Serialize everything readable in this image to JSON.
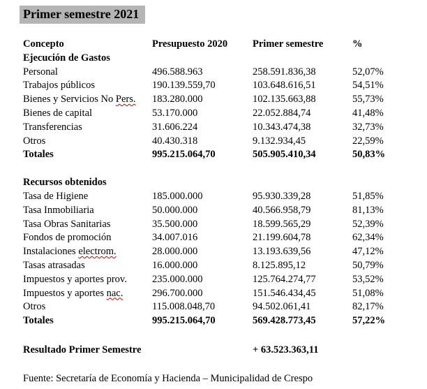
{
  "title": "Primer semestre 2021",
  "colors": {
    "background": "#ffffff",
    "text": "#000000",
    "title_highlight": "#b5b5b5",
    "spellcheck_underline": "#cc0000"
  },
  "table": {
    "columns": [
      "Concepto",
      "Presupuesto 2020",
      "Primer semestre",
      "%"
    ],
    "sections": [
      {
        "heading": "Ejecución de Gastos",
        "rows": [
          {
            "label": "Personal",
            "presupuesto_2020": "496.588.963",
            "primer_semestre": "258.591.836,38",
            "pct": "52,07%"
          },
          {
            "label": "Trabajos públicos",
            "presupuesto_2020": "190.139.559,70",
            "primer_semestre": "103.648.616,51",
            "pct": "54,51%"
          },
          {
            "label": "Bienes y Servicios No",
            "label_misspelled": "Pers.",
            "presupuesto_2020": "183.280.000",
            "primer_semestre": "102.135.663,88",
            "pct": "55,73%"
          },
          {
            "label": "Bienes de capital",
            "presupuesto_2020": "53.170.000",
            "primer_semestre": "22.052.884,74",
            "pct": "41,48%"
          },
          {
            "label": "Transferencias",
            "presupuesto_2020": "31.606.224",
            "primer_semestre": "10.343.474,38",
            "pct": "32,73%"
          },
          {
            "label": "Otros",
            "presupuesto_2020": "40.430.318",
            "primer_semestre": "9.132.934,45",
            "pct": "22,59%"
          }
        ],
        "totals": {
          "label": "Totales",
          "presupuesto_2020": "995.215.064,70",
          "primer_semestre": "505.905.410,34",
          "pct": "50,83%"
        }
      },
      {
        "heading": "Recursos obtenidos",
        "rows": [
          {
            "label": "Tasa de Higiene",
            "presupuesto_2020": "185.000.000",
            "primer_semestre": "95.930.339,28",
            "pct": "51,85%"
          },
          {
            "label": "Tasa Inmobiliaria",
            "presupuesto_2020": "50.000.000",
            "primer_semestre": "40.566.958,79",
            "pct": "81,13%"
          },
          {
            "label": "Tasa Obras Sanitarias",
            "presupuesto_2020": "35.500.000",
            "primer_semestre": "18.599.565,29",
            "pct": "52,39%"
          },
          {
            "label": "Fondos de promoción",
            "presupuesto_2020": "34.007.016",
            "primer_semestre": "21.199.604,78",
            "pct": "62,34%"
          },
          {
            "label": "Instalaciones",
            "label_misspelled": "electrom.",
            "presupuesto_2020": "28.000.000",
            "primer_semestre": "13.193.639,56",
            "pct": "47,12%"
          },
          {
            "label": "Tasas atrasadas",
            "presupuesto_2020": "16.000.000",
            "primer_semestre": "8.125.895,12",
            "pct": "50,79%"
          },
          {
            "label": "Impuestos y aportes prov.",
            "presupuesto_2020": "235.000.000",
            "primer_semestre": "125.764.274,77",
            "pct": "53,52%"
          },
          {
            "label": "Impuestos y aportes",
            "label_misspelled": "nac.",
            "presupuesto_2020": "296.700.000",
            "primer_semestre": "151.546.434,45",
            "pct": "51,08%"
          },
          {
            "label": "Otros",
            "presupuesto_2020": "115.008.048,70",
            "primer_semestre": "94.502.061,41",
            "pct": "82,17%"
          }
        ],
        "totals": {
          "label": "Totales",
          "presupuesto_2020": "995.215.064,70",
          "primer_semestre": "569.428.773,45",
          "pct": "57,22%"
        }
      }
    ],
    "result": {
      "label": "Resultado Primer Semestre",
      "value": "+ 63.523.363,11"
    }
  },
  "source": "Fuente: Secretaría de Economía y Hacienda – Municipalidad de Crespo"
}
